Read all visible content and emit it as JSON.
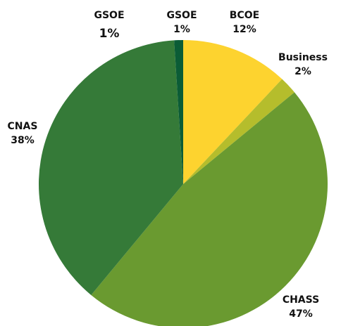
{
  "chart_data": {
    "type": "pie",
    "categories": [
      "BCOE",
      "Business",
      "CHASS",
      "CNAS",
      "GSOE"
    ],
    "values": [
      12,
      2,
      47,
      38,
      1
    ],
    "value_labels": [
      "12%",
      "2%",
      "47%",
      "38%",
      "1%"
    ],
    "colors": [
      "#fdd32f",
      "#b5bd2c",
      "#6a9a30",
      "#357a38",
      "#0b5c36"
    ],
    "annotations": [
      {
        "label": "GSOE",
        "value_label": "1%"
      }
    ]
  }
}
